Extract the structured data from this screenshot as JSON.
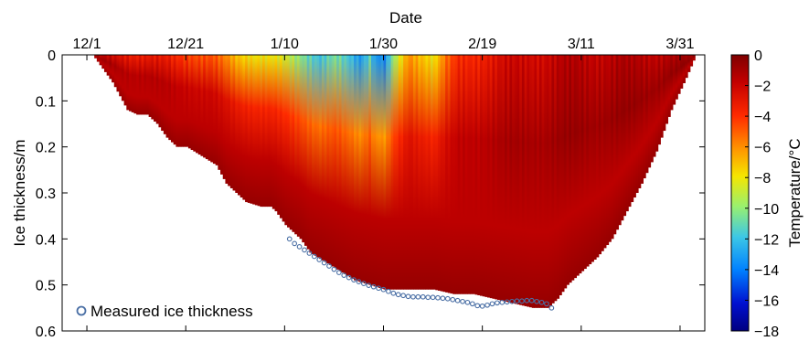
{
  "chart_data": {
    "type": "heatmap",
    "xlabel": "Date",
    "ylabel": "Ice thickness/m",
    "colorbar_label": "Temperature/°C",
    "x_tick_labels": [
      "12/1",
      "12/21",
      "1/10",
      "1/30",
      "2/19",
      "3/11",
      "3/31"
    ],
    "x_tick_days": [
      0,
      20,
      40,
      60,
      80,
      100,
      120
    ],
    "xlim_days": [
      -5,
      125
    ],
    "y_ticks": [
      0,
      0.1,
      0.2,
      0.3,
      0.4,
      0.5,
      0.6
    ],
    "ylim": [
      0,
      0.6
    ],
    "y_reversed": true,
    "colorbar_ticks": [
      0,
      -2,
      -4,
      -6,
      -8,
      -10,
      -12,
      -14,
      -16,
      -18
    ],
    "colorbar_range": [
      -18,
      0
    ],
    "colormap": "jet",
    "legend": {
      "label": "Measured ice thickness",
      "marker": "open-circle",
      "color": "#4a6fa5",
      "placement": "bottom-left"
    },
    "simulated_ice_thickness": {
      "day": [
        1,
        3,
        5,
        7,
        8,
        10,
        12,
        14,
        16,
        18,
        20,
        23,
        26,
        28,
        30,
        32,
        35,
        37,
        38,
        40,
        43,
        45,
        48,
        51,
        54,
        57,
        60,
        63,
        66,
        70,
        74,
        78,
        82,
        86,
        90,
        93,
        95,
        97,
        100,
        103,
        106,
        109,
        112,
        115,
        118,
        121,
        123
      ],
      "depth_m": [
        0,
        0.03,
        0.06,
        0.1,
        0.12,
        0.13,
        0.13,
        0.15,
        0.18,
        0.2,
        0.2,
        0.22,
        0.24,
        0.28,
        0.3,
        0.32,
        0.33,
        0.33,
        0.34,
        0.37,
        0.4,
        0.43,
        0.45,
        0.47,
        0.49,
        0.5,
        0.51,
        0.51,
        0.51,
        0.51,
        0.52,
        0.52,
        0.53,
        0.54,
        0.55,
        0.55,
        0.53,
        0.5,
        0.47,
        0.44,
        0.4,
        0.34,
        0.28,
        0.21,
        0.12,
        0.05,
        0
      ]
    },
    "surface_temperature_c": {
      "day": [
        0,
        10,
        20,
        25,
        30,
        35,
        40,
        43,
        45,
        47,
        50,
        53,
        55,
        57,
        58,
        60,
        62,
        65,
        68,
        70,
        72,
        75,
        80,
        85,
        90,
        95,
        100,
        110,
        120,
        125
      ],
      "value": [
        -2,
        -3,
        -4,
        -5,
        -7,
        -8,
        -9,
        -10,
        -11,
        -12,
        -11,
        -12,
        -13,
        -11,
        -13,
        -14,
        -10,
        -6,
        -7,
        -8,
        -6,
        -4,
        -3,
        -2.5,
        -2,
        -1.8,
        -1.5,
        -1.5,
        -1.2,
        -1
      ]
    },
    "measured_ice_thickness": {
      "day": [
        41,
        42,
        43,
        44,
        45,
        46,
        47,
        48,
        49,
        50,
        51,
        52,
        53,
        54,
        55,
        56,
        57,
        58,
        59,
        60,
        61,
        62,
        63,
        64,
        65,
        66,
        67,
        68,
        69,
        70,
        71,
        72,
        73,
        74,
        75,
        76,
        77,
        78,
        79,
        80,
        81,
        82,
        83,
        84,
        85,
        86,
        87,
        88,
        89,
        90,
        91,
        92,
        93,
        94
      ],
      "depth_m": [
        0.4,
        0.41,
        0.417,
        0.424,
        0.431,
        0.438,
        0.445,
        0.452,
        0.459,
        0.466,
        0.473,
        0.479,
        0.484,
        0.489,
        0.493,
        0.497,
        0.501,
        0.504,
        0.507,
        0.51,
        0.514,
        0.518,
        0.521,
        0.523,
        0.525,
        0.526,
        0.526,
        0.526,
        0.527,
        0.527,
        0.528,
        0.529,
        0.53,
        0.532,
        0.534,
        0.536,
        0.538,
        0.541,
        0.545,
        0.546,
        0.544,
        0.541,
        0.539,
        0.538,
        0.537,
        0.536,
        0.535,
        0.535,
        0.534,
        0.534,
        0.536,
        0.538,
        0.541,
        0.55
      ]
    }
  }
}
